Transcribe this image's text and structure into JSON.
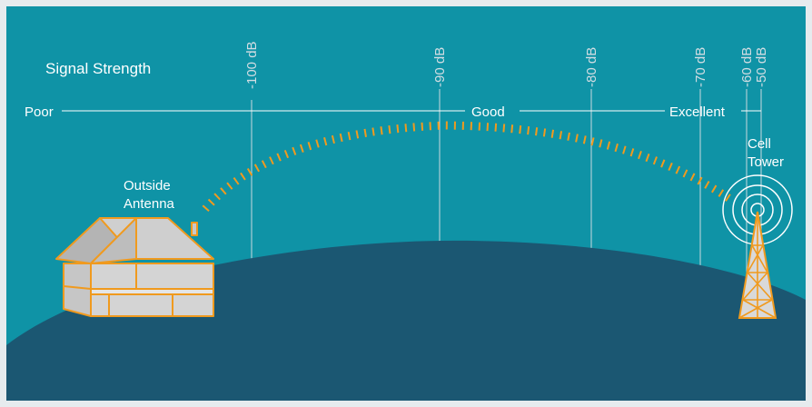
{
  "title": "Signal Strength",
  "scale": {
    "poor": "Poor",
    "good": "Good",
    "excellent": "Excellent"
  },
  "db_markers": [
    "-100 dB",
    "-90 dB",
    "-80 dB",
    "-70 dB",
    "-60 dB",
    "-50 dB"
  ],
  "house": {
    "label_line1": "Outside",
    "label_line2": "Antenna"
  },
  "tower": {
    "label_line1": "Cell",
    "label_line2": "Tower"
  },
  "colors": {
    "sky": "#0f93a6",
    "ground": "#1b5772",
    "signal": "#f09a1e",
    "lines": "#c9d8de",
    "house_outline": "#f09a1e",
    "house_fill": "#c9c9c9"
  }
}
